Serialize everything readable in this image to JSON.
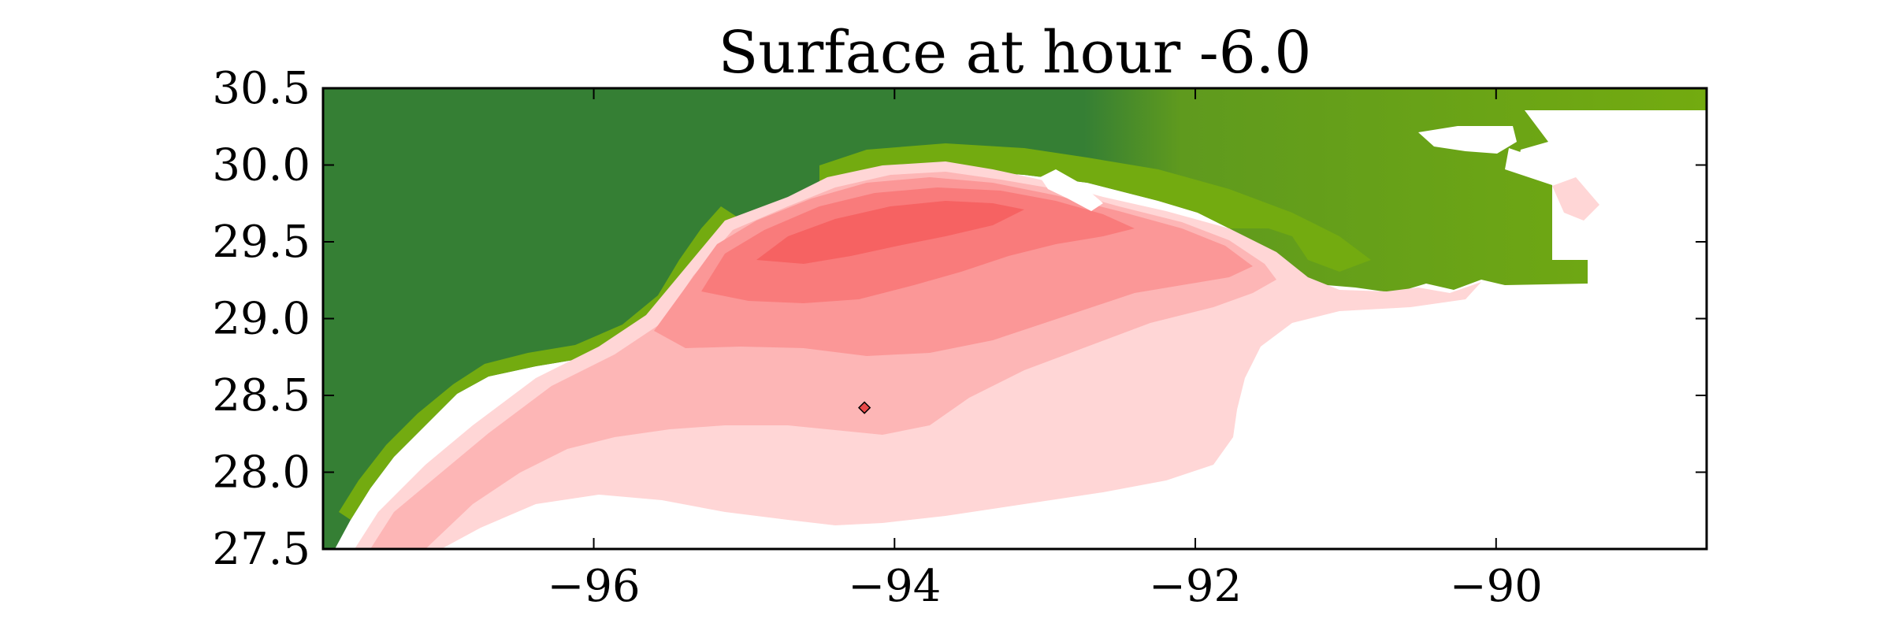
{
  "figure": {
    "title": "Surface at hour -6.0"
  },
  "map_axes": {
    "lon_range": [
      -97.8,
      -88.6
    ],
    "lat_range": [
      27.5,
      30.5
    ],
    "x_ticks": [
      {
        "value": -96,
        "label": "−96"
      },
      {
        "value": -94,
        "label": "−94"
      },
      {
        "value": -92,
        "label": "−92"
      },
      {
        "value": -90,
        "label": "−90"
      }
    ],
    "y_ticks": [
      {
        "value": 30.5,
        "label": "30.5"
      },
      {
        "value": 30.0,
        "label": "30.0"
      },
      {
        "value": 29.5,
        "label": "29.5"
      },
      {
        "value": 29.0,
        "label": "29.0"
      },
      {
        "value": 28.5,
        "label": "28.5"
      },
      {
        "value": 28.0,
        "label": "28.0"
      },
      {
        "value": 27.5,
        "label": "27.5"
      }
    ]
  },
  "marker": {
    "lon": -94.2,
    "lat": 28.42,
    "color": "#e94a4a"
  },
  "colors": {
    "land_dark": "#357f34",
    "land_light": "#73ab10",
    "surge_1": "#ffd6d6",
    "surge_2": "#fdb6b6",
    "surge_3": "#fb9797",
    "surge_4": "#f97b7b",
    "surge_5": "#f66262"
  }
}
